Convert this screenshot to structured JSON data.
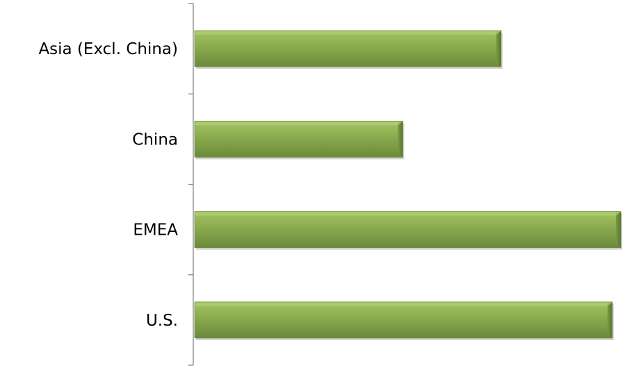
{
  "chart_data": {
    "type": "bar",
    "orientation": "horizontal",
    "categories": [
      "Asia (Excl. China)",
      "China",
      "EMEA",
      "U.S."
    ],
    "values": [
      72,
      49,
      100,
      98
    ],
    "xlim": [
      0,
      100
    ],
    "x_axis_visible": false,
    "value_labels_shown": false,
    "grid": false,
    "legend": "none",
    "bar_color": "#8aaa4f",
    "bar_color_light": "#a3c361",
    "bar_color_dark": "#6b8a3a",
    "axis_color": "#868686"
  }
}
